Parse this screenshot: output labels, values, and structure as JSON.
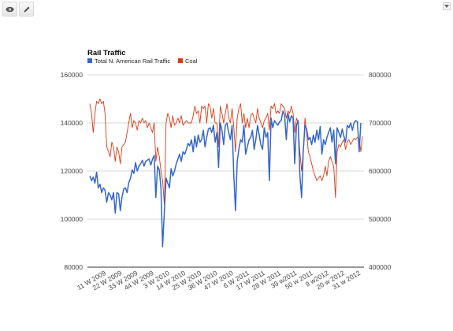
{
  "toolbar": {
    "view_icon": "eye-icon",
    "edit_icon": "pencil-icon",
    "menu_icon": "dropdown-arrow-icon"
  },
  "chart_data": {
    "type": "line",
    "title": "Rail Traffic",
    "legend": {
      "position": "top-left"
    },
    "grid": true,
    "x_ticks": [
      "11 W 2009",
      "22 W 2009",
      "33 W 2009",
      "44 W 2009",
      "3 W 2010",
      "14 W 2010",
      "25 W 2010",
      "36 W 2010",
      "47 W 2010",
      "6 W 2011",
      "17 W 2011",
      "28 W 2011",
      "39 w2011",
      "50 w 2011",
      "9 w2012",
      "20 w 2012",
      "31 w 2012"
    ],
    "y_left": {
      "min": 80000,
      "max": 160000,
      "ticks": [
        80000,
        100000,
        120000,
        140000,
        160000
      ]
    },
    "y_right": {
      "min": 400000,
      "max": 800000,
      "ticks": [
        400000,
        500000,
        600000,
        700000,
        800000
      ]
    },
    "series": [
      {
        "name": "Total N. American Rail Traffic",
        "axis": "left",
        "color": "#3366cc",
        "values": [
          118000,
          116000,
          117500,
          115000,
          119500,
          113000,
          114500,
          111000,
          113000,
          112000,
          107000,
          111000,
          110000,
          108000,
          111000,
          102500,
          111000,
          110500,
          103500,
          109000,
          112500,
          113000,
          111000,
          115000,
          117000,
          120500,
          119000,
          123500,
          120000,
          122000,
          123000,
          124500,
          122000,
          124000,
          124500,
          125000,
          122500,
          125000,
          126500,
          109000,
          122000,
          120500,
          113000,
          88500,
          103000,
          117000,
          115000,
          113000,
          121000,
          118000,
          120000,
          123000,
          125000,
          127000,
          124000,
          128000,
          127000,
          129000,
          131500,
          130500,
          133000,
          128000,
          134500,
          130000,
          135000,
          132000,
          133000,
          137000,
          130000,
          134000,
          137500,
          138000,
          136000,
          139000,
          132000,
          136000,
          121500,
          140000,
          137000,
          131000,
          139000,
          140000,
          136000,
          133000,
          139000,
          118000,
          103500,
          124000,
          129000,
          133000,
          132000,
          139000,
          127000,
          130000,
          133000,
          134000,
          137000,
          129000,
          133000,
          139000,
          135000,
          131000,
          129000,
          138000,
          134000,
          136000,
          116000,
          142000,
          138000,
          141000,
          140000,
          139000,
          140500,
          141000,
          145000,
          143000,
          133000,
          144000,
          140500,
          143000,
          142000,
          123000,
          139000,
          141000,
          118500,
          109000,
          128000,
          139000,
          137500,
          133000,
          134000,
          131000,
          135000,
          132000,
          137000,
          133000,
          138500,
          127000,
          133000,
          131000,
          134000,
          136000,
          138000,
          132000,
          137000,
          123000,
          138000,
          136000,
          134000,
          137500,
          134500,
          132000,
          139000,
          138000,
          140000,
          137000,
          140000,
          141000,
          140500,
          128000,
          140000
        ]
      },
      {
        "name": "Coal",
        "axis": "right",
        "color": "#dc3912",
        "values": [
          740000,
          720000,
          680000,
          720000,
          745000,
          740000,
          750000,
          740000,
          745000,
          720000,
          650000,
          640000,
          630000,
          660000,
          650000,
          620000,
          650000,
          640000,
          615000,
          650000,
          655000,
          660000,
          680000,
          700000,
          720000,
          690000,
          705000,
          700000,
          685000,
          705000,
          700000,
          710000,
          700000,
          705000,
          690000,
          700000,
          690000,
          680000,
          700000,
          620000,
          650000,
          630000,
          600000,
          580000,
          530000,
          700000,
          720000,
          710000,
          690000,
          715000,
          695000,
          700000,
          710000,
          700000,
          715000,
          695000,
          700000,
          705000,
          700000,
          700000,
          700000,
          715000,
          735000,
          720000,
          725000,
          700000,
          735000,
          730000,
          735000,
          700000,
          740000,
          735000,
          710000,
          730000,
          700000,
          700000,
          650000,
          735000,
          720000,
          700000,
          720000,
          740000,
          710000,
          700000,
          730000,
          690000,
          640000,
          710000,
          730000,
          740000,
          700000,
          720000,
          690000,
          710000,
          690000,
          715000,
          720000,
          710000,
          700000,
          730000,
          710000,
          700000,
          690000,
          705000,
          710000,
          720000,
          685000,
          735000,
          730000,
          740000,
          720000,
          725000,
          720000,
          740000,
          735000,
          730000,
          710000,
          725000,
          720000,
          735000,
          720000,
          680000,
          710000,
          700000,
          640000,
          600000,
          640000,
          710000,
          680000,
          640000,
          630000,
          615000,
          600000,
          590000,
          580000,
          585000,
          590000,
          580000,
          590000,
          610000,
          590000,
          620000,
          630000,
          620000,
          610000,
          545000,
          640000,
          655000,
          650000,
          660000,
          665000,
          645000,
          660000,
          665000,
          655000,
          662000,
          668000,
          665000,
          670000,
          666000,
          640000,
          672000
        ]
      }
    ]
  }
}
